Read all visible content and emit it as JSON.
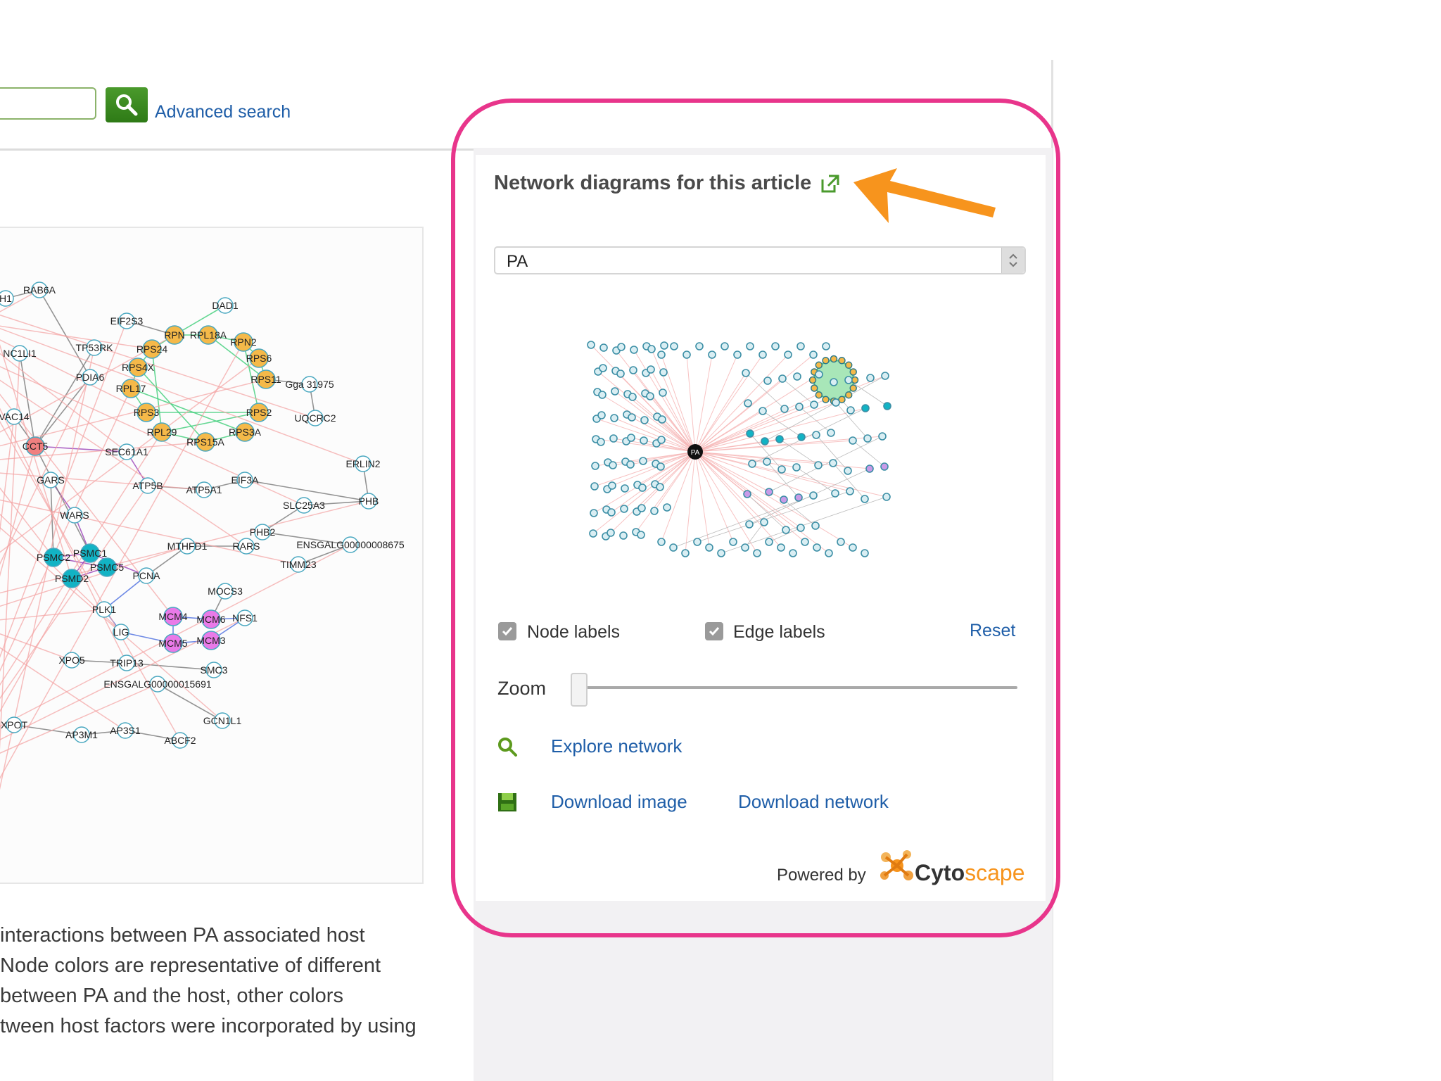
{
  "header": {
    "search_placeholder": "",
    "advanced_search_label": "Advanced search"
  },
  "figure": {
    "node_labels": [
      "RAB6A",
      "DAD1",
      "EIF2S3",
      "RPN",
      "RPL18A",
      "RPN2",
      "RPS6",
      "RPS24",
      "RPS4X",
      "RPL17",
      "RPS11",
      "Gga 31975",
      "TP53RK",
      "PDIA6",
      "RPS3",
      "RPS2",
      "RPL29",
      "RPS15A",
      "RPS3A",
      "UQCRC2",
      "CCT5",
      "SEC61A1",
      "GARS",
      "ATP5B",
      "ATP5A1",
      "EIF3A",
      "ERLIN2",
      "PHB",
      "SLC25A3",
      "WARS",
      "PSMC1",
      "PSMC2",
      "PSMC5",
      "PSMD2",
      "MTHFD1",
      "RARS",
      "PHB2",
      "ENSGALG00000008675",
      "TIMM23",
      "PCNA",
      "MOCS3",
      "PLK1",
      "MCM4",
      "MCM6",
      "NFS1",
      "LIG",
      "MCM5",
      "MCM3",
      "XPO5",
      "TRIP13",
      "SMC3",
      "ENSGALG00000015691",
      "GCN1L1",
      "XPOT",
      "AP3M1",
      "AP3S1",
      "ABCF2",
      "H1",
      "NC1LI1",
      "VAC14"
    ]
  },
  "caption": {
    "lines": [
      "interactions between PA associated host",
      "Node colors are representative of different",
      "between PA and the host, other colors",
      "tween host factors were incorporated by using"
    ]
  },
  "panel": {
    "title": "Network diagrams for this article",
    "selected_network": "PA",
    "center_node_label": "PA",
    "node_labels_label": "Node labels",
    "node_labels_checked": true,
    "edge_labels_label": "Edge labels",
    "edge_labels_checked": true,
    "reset_label": "Reset",
    "zoom_label": "Zoom",
    "zoom_level": 0,
    "explore_label": "Explore network",
    "download_image_label": "Download image",
    "download_network_label": "Download network",
    "powered_by_label": "Powered by",
    "brand_cyto": "Cyto",
    "brand_scape": "scape"
  },
  "colors": {
    "highlight": "#e8358b",
    "arrow": "#f7941d",
    "link": "#1f5ea8",
    "search_button": "#3a8a22"
  },
  "icons": [
    "search-icon",
    "external-link-icon",
    "magnifier-icon",
    "save-icon",
    "cytoscape-logo-icon",
    "arrow-annotation-icon"
  ]
}
